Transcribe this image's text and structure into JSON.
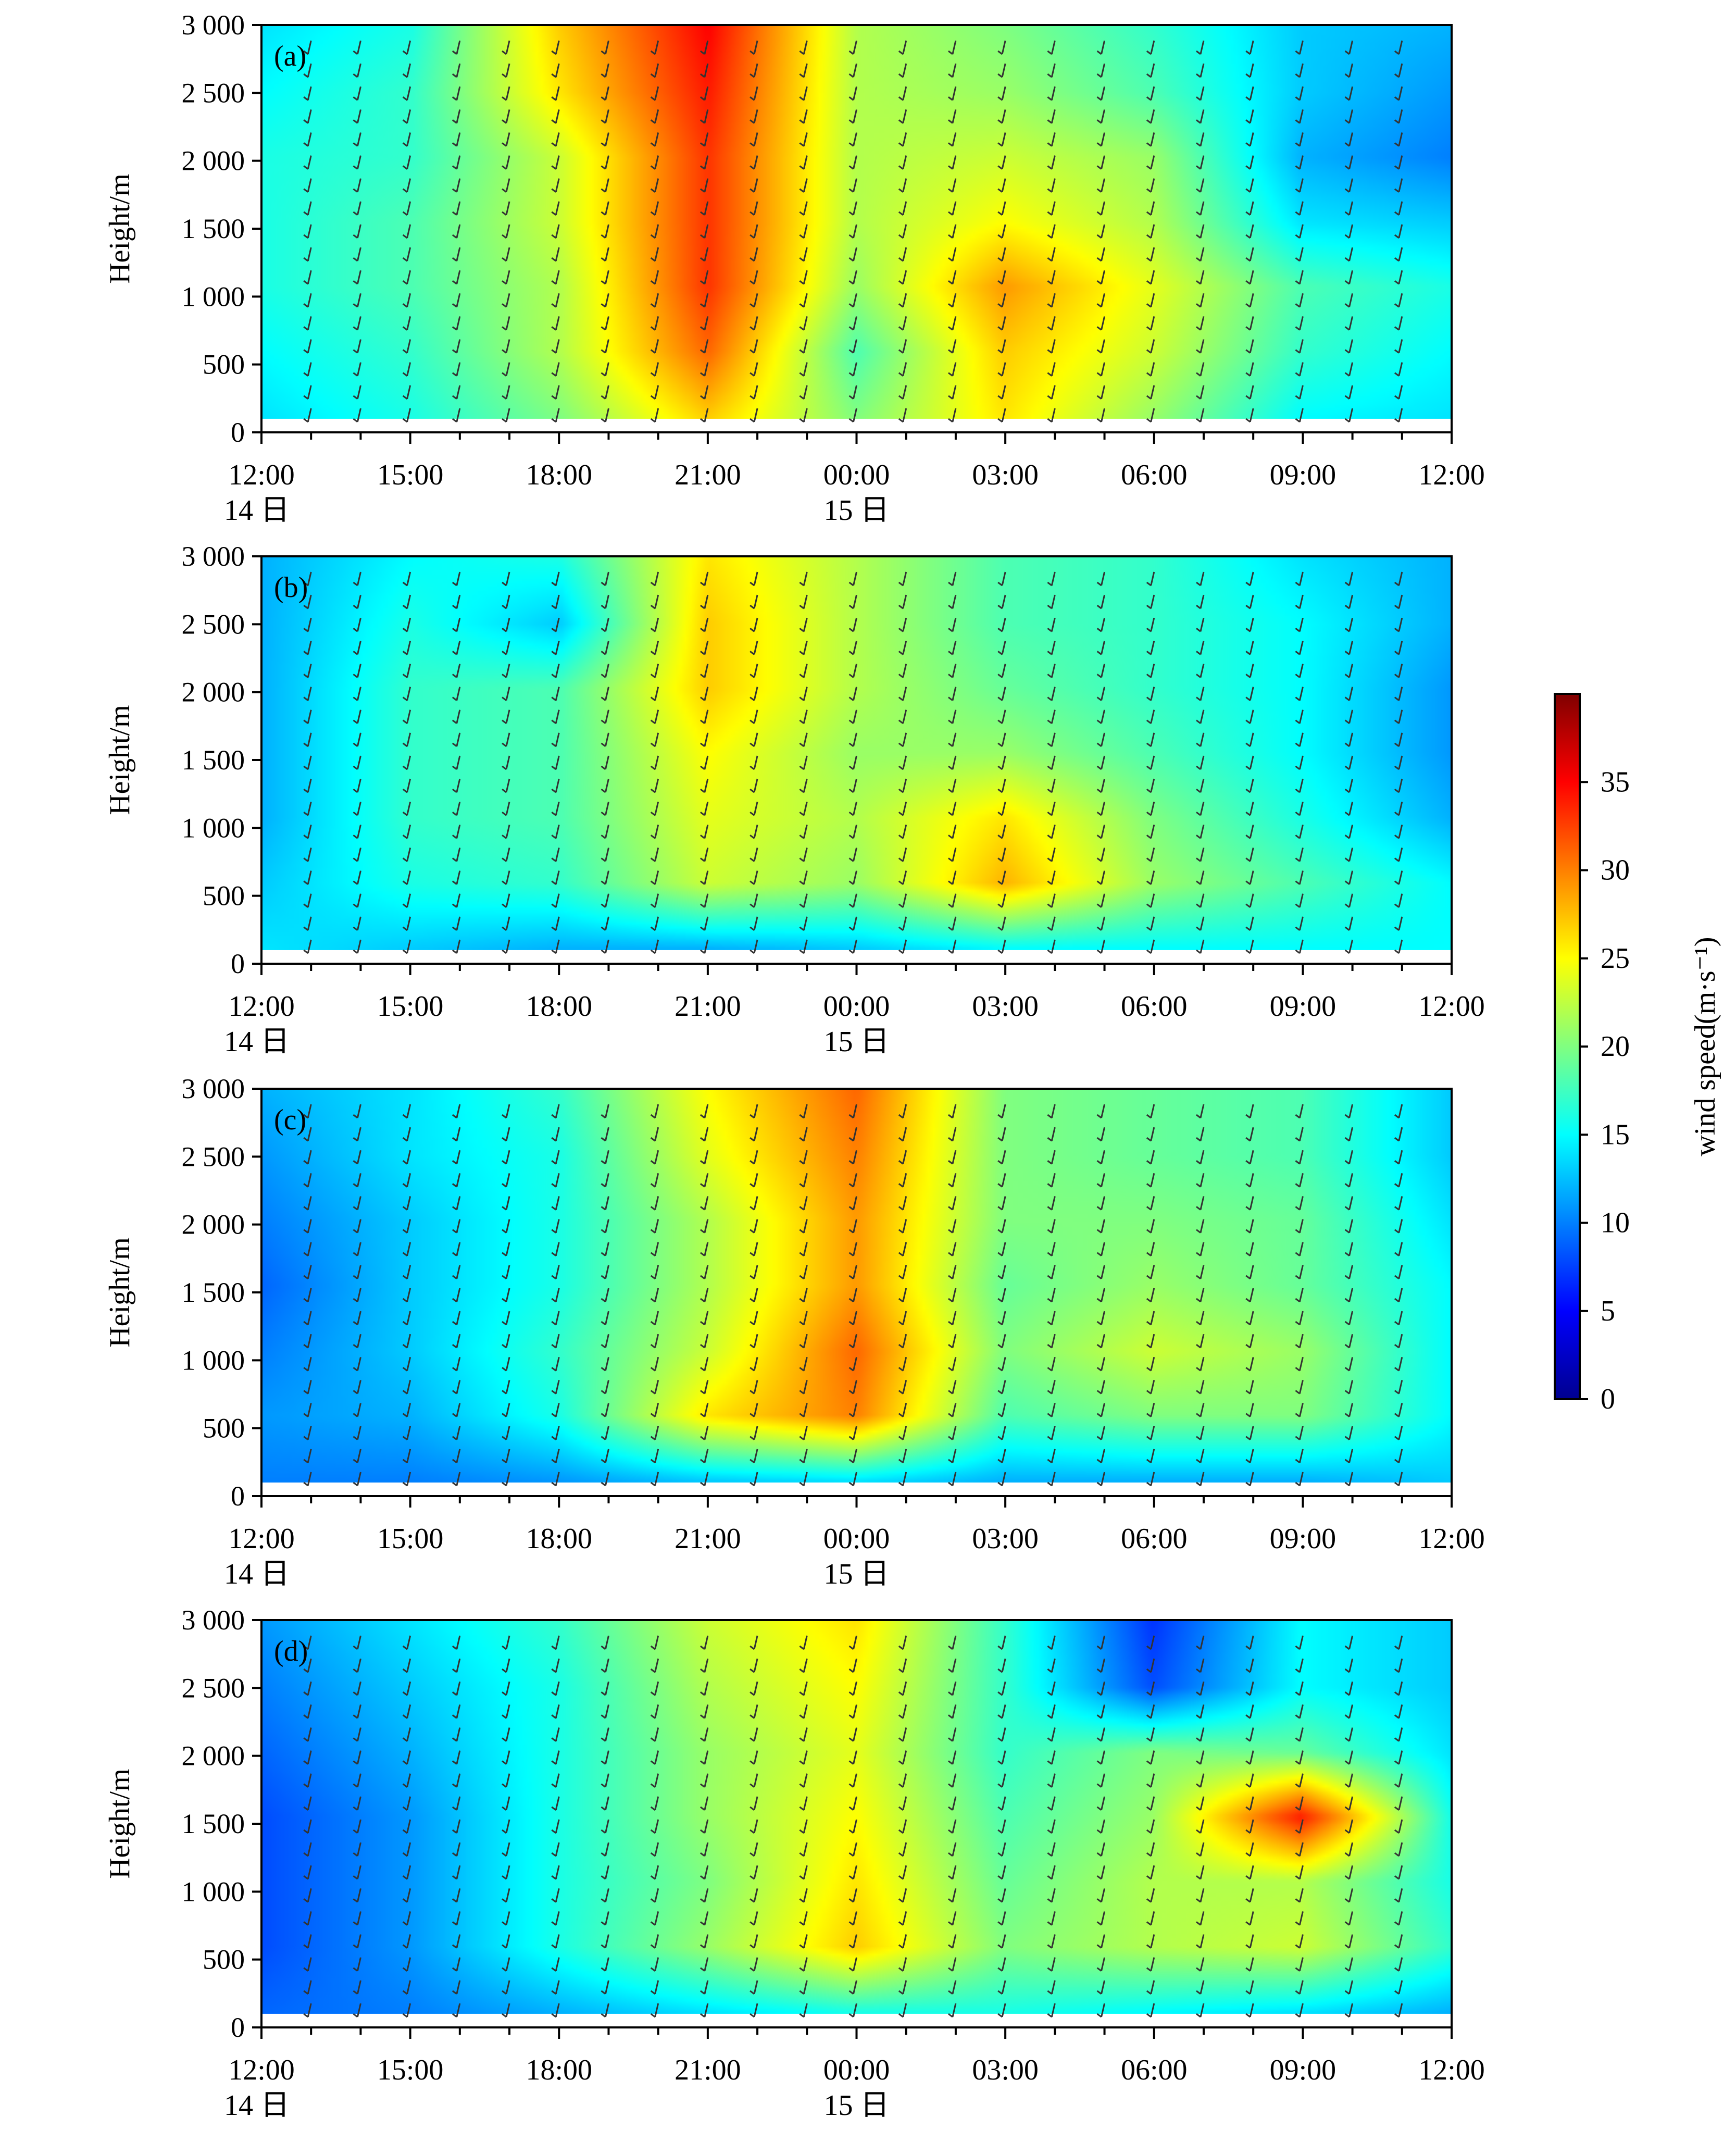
{
  "colorbar": {
    "label": "wind speed(m·s⁻¹)",
    "min": 0,
    "max": 40,
    "ticks": [
      "0",
      "5",
      "10",
      "15",
      "20",
      "25",
      "30",
      "35"
    ],
    "colormap": [
      "#00008f",
      "#0000ff",
      "#0080ff",
      "#00ffff",
      "#80ff80",
      "#ffff00",
      "#ff8000",
      "#ff0000",
      "#800000"
    ]
  },
  "axes": {
    "ylabel": "Height/m",
    "yticks": [
      "0",
      "500",
      "1 000",
      "1 500",
      "2 000",
      "2 500",
      "3 000"
    ],
    "xticks": [
      "12:00",
      "15:00",
      "18:00",
      "21:00",
      "00:00",
      "03:00",
      "06:00",
      "09:00",
      "12:00"
    ],
    "xday_labels": [
      "14 日",
      "15 日"
    ]
  },
  "chart_data": [
    {
      "type": "heatmap",
      "panel_label": "(a)",
      "x_range": [
        "14 日 12:00",
        "15 日 12:00"
      ],
      "ylim": [
        0,
        3000
      ],
      "grid": false,
      "x": [
        "12:00",
        "15:00",
        "18:00",
        "21:00",
        "00:00",
        "03:00",
        "06:00",
        "09:00",
        "12:00"
      ],
      "y": [
        0,
        500,
        1000,
        1500,
        2000,
        2500,
        3000
      ],
      "z": [
        [
          14,
          16,
          20,
          27,
          20,
          26,
          21,
          15,
          14
        ],
        [
          15,
          17,
          22,
          31,
          18,
          27,
          23,
          17,
          15
        ],
        [
          16,
          18,
          22,
          33,
          21,
          29,
          24,
          18,
          16
        ],
        [
          16,
          18,
          23,
          33,
          22,
          25,
          22,
          14,
          13
        ],
        [
          16,
          17,
          23,
          33,
          22,
          23,
          21,
          12,
          10
        ],
        [
          15,
          17,
          26,
          34,
          22,
          21,
          18,
          13,
          11
        ],
        [
          14,
          16,
          27,
          35,
          22,
          20,
          17,
          13,
          12
        ]
      ]
    },
    {
      "type": "heatmap",
      "panel_label": "(b)",
      "x_range": [
        "14 日 12:00",
        "15 日 12:00"
      ],
      "ylim": [
        0,
        3000
      ],
      "grid": false,
      "x": [
        "12:00",
        "15:00",
        "18:00",
        "21:00",
        "00:00",
        "03:00",
        "06:00",
        "09:00",
        "12:00"
      ],
      "y": [
        0,
        500,
        1000,
        1500,
        2000,
        2500,
        3000
      ],
      "z": [
        [
          14,
          13,
          12,
          12,
          13,
          15,
          15,
          15,
          15
        ],
        [
          13,
          16,
          17,
          23,
          21,
          28,
          21,
          18,
          15
        ],
        [
          12,
          17,
          18,
          24,
          22,
          26,
          20,
          16,
          12
        ],
        [
          12,
          17,
          18,
          25,
          21,
          21,
          18,
          15,
          11
        ],
        [
          12,
          17,
          18,
          27,
          22,
          19,
          17,
          15,
          11
        ],
        [
          12,
          16,
          13,
          27,
          22,
          18,
          17,
          15,
          12
        ],
        [
          12,
          15,
          16,
          26,
          22,
          18,
          17,
          14,
          12
        ]
      ]
    },
    {
      "type": "heatmap",
      "panel_label": "(c)",
      "x_range": [
        "14 日 12:00",
        "15 日 12:00"
      ],
      "ylim": [
        0,
        3000
      ],
      "grid": false,
      "x": [
        "12:00",
        "15:00",
        "18:00",
        "21:00",
        "00:00",
        "03:00",
        "06:00",
        "09:00",
        "12:00"
      ],
      "y": [
        0,
        500,
        1000,
        1500,
        2000,
        2500,
        3000
      ],
      "z": [
        [
          10,
          10,
          11,
          13,
          14,
          12,
          12,
          12,
          13
        ],
        [
          11,
          12,
          16,
          26,
          30,
          18,
          20,
          20,
          15
        ],
        [
          10,
          13,
          17,
          23,
          31,
          20,
          23,
          21,
          15
        ],
        [
          9,
          13,
          16,
          22,
          29,
          19,
          21,
          19,
          15
        ],
        [
          10,
          13,
          16,
          22,
          29,
          20,
          20,
          19,
          14
        ],
        [
          11,
          14,
          16,
          24,
          30,
          20,
          19,
          18,
          13
        ],
        [
          12,
          14,
          17,
          25,
          31,
          20,
          19,
          18,
          13
        ]
      ]
    },
    {
      "type": "heatmap",
      "panel_label": "(d)",
      "x_range": [
        "14 日 12:00",
        "15 日 12:00"
      ],
      "ylim": [
        0,
        3000
      ],
      "grid": false,
      "x": [
        "12:00",
        "15:00",
        "18:00",
        "21:00",
        "00:00",
        "03:00",
        "06:00",
        "09:00",
        "12:00"
      ],
      "y": [
        0,
        500,
        1000,
        1500,
        2000,
        2500,
        3000
      ],
      "z": [
        [
          9,
          10,
          12,
          14,
          16,
          16,
          15,
          14,
          12
        ],
        [
          8,
          11,
          16,
          21,
          27,
          20,
          22,
          23,
          17
        ],
        [
          8,
          11,
          16,
          20,
          26,
          19,
          22,
          22,
          16
        ],
        [
          8,
          11,
          16,
          21,
          25,
          18,
          21,
          34,
          16
        ],
        [
          9,
          12,
          16,
          21,
          24,
          17,
          20,
          19,
          14
        ],
        [
          10,
          13,
          16,
          22,
          25,
          17,
          8,
          15,
          13
        ],
        [
          11,
          14,
          17,
          23,
          26,
          17,
          7,
          15,
          13
        ]
      ]
    }
  ]
}
